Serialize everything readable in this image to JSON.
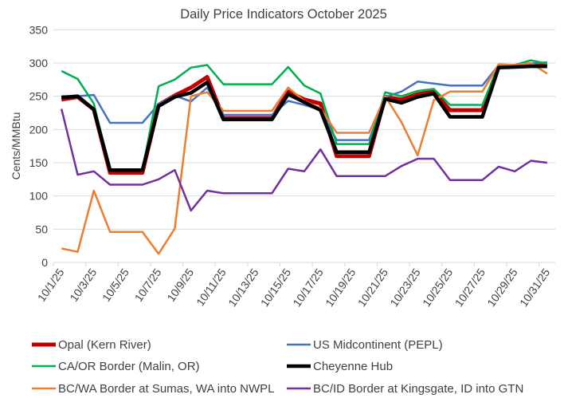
{
  "chart_data": {
    "type": "line",
    "title": "Daily Price Indicators October 2025",
    "xlabel": "",
    "ylabel": "Cents/MMBtu",
    "ylim": [
      0,
      350
    ],
    "yticks": [
      0,
      50,
      100,
      150,
      200,
      250,
      300,
      350
    ],
    "grid": true,
    "legend_position": "bottom",
    "x": [
      "10/1/25",
      "10/2/25",
      "10/3/25",
      "10/4/25",
      "10/5/25",
      "10/6/25",
      "10/7/25",
      "10/8/25",
      "10/9/25",
      "10/10/25",
      "10/11/25",
      "10/12/25",
      "10/13/25",
      "10/14/25",
      "10/15/25",
      "10/16/25",
      "10/17/25",
      "10/18/25",
      "10/19/25",
      "10/20/25",
      "10/21/25",
      "10/22/25",
      "10/23/25",
      "10/24/25",
      "10/25/25",
      "10/26/25",
      "10/27/25",
      "10/28/25",
      "10/29/25",
      "10/30/25",
      "10/31/25"
    ],
    "xtick_labels": [
      "10/1/25",
      "10/3/25",
      "10/5/25",
      "10/7/25",
      "10/9/25",
      "10/11/25",
      "10/13/25",
      "10/15/25",
      "10/17/25",
      "10/19/25",
      "10/21/25",
      "10/23/25",
      "10/25/25",
      "10/27/25",
      "10/29/25",
      "10/31/25"
    ],
    "series": [
      {
        "name": "Opal (Kern River)",
        "color": "#C00000",
        "width": 5,
        "values": [
          245,
          249,
          230,
          135,
          135,
          135,
          237,
          251,
          263,
          279,
          217,
          217,
          217,
          217,
          257,
          245,
          239,
          160,
          160,
          160,
          249,
          245,
          253,
          257,
          229,
          229,
          229,
          294,
          295,
          298,
          295
        ]
      },
      {
        "name": "US Midcontinent (PEPL)",
        "color": "#4472C4",
        "width": 2.5,
        "values": [
          250,
          250,
          252,
          210,
          210,
          210,
          238,
          251,
          242,
          263,
          222,
          222,
          222,
          222,
          243,
          237,
          229,
          184,
          184,
          184,
          249,
          257,
          272,
          269,
          266,
          266,
          266,
          297,
          297,
          299,
          301
        ]
      },
      {
        "name": "CA/OR Border (Malin, OR)",
        "color": "#00B050",
        "width": 2.5,
        "values": [
          288,
          276,
          239,
          139,
          139,
          139,
          265,
          275,
          293,
          297,
          268,
          268,
          268,
          268,
          294,
          266,
          254,
          178,
          178,
          178,
          256,
          250,
          258,
          261,
          237,
          237,
          237,
          297,
          297,
          304,
          299
        ]
      },
      {
        "name": "Cheyenne Hub",
        "color": "#000000",
        "width": 4.5,
        "values": [
          248,
          250,
          230,
          139,
          139,
          139,
          235,
          249,
          255,
          271,
          215,
          215,
          215,
          215,
          253,
          241,
          229,
          166,
          166,
          166,
          246,
          240,
          249,
          254,
          219,
          219,
          219,
          293,
          294,
          295,
          295
        ]
      },
      {
        "name": "BC/WA Border at Sumas, WA into NWPL",
        "color": "#ED7D31",
        "width": 2.5,
        "values": [
          21,
          16,
          108,
          46,
          46,
          46,
          13,
          51,
          250,
          256,
          228,
          228,
          228,
          228,
          263,
          243,
          232,
          195,
          195,
          195,
          250,
          211,
          161,
          244,
          257,
          257,
          257,
          298,
          297,
          300,
          284
        ]
      },
      {
        "name": "BC/ID Border at Kingsgate, ID into GTN",
        "color": "#7030A0",
        "width": 2.5,
        "values": [
          231,
          132,
          137,
          117,
          117,
          117,
          125,
          139,
          78,
          108,
          104,
          104,
          104,
          104,
          141,
          137,
          170,
          130,
          130,
          130,
          130,
          145,
          156,
          156,
          124,
          124,
          124,
          144,
          137,
          153,
          150
        ]
      }
    ]
  }
}
